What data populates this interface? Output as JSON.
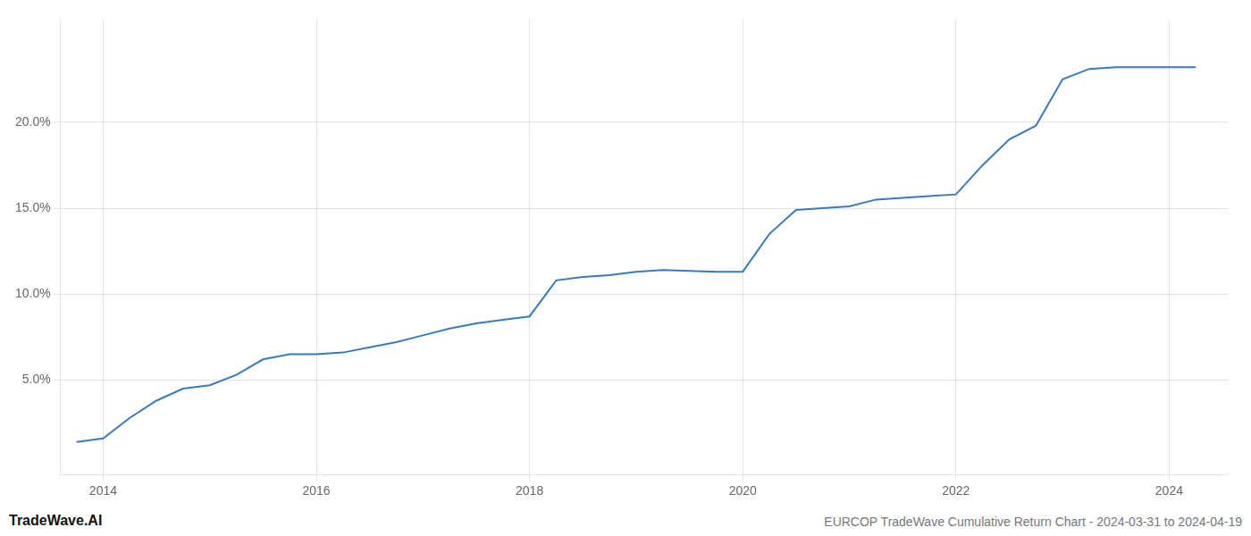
{
  "chart_data": {
    "type": "line",
    "title": "EURCOP TradeWave Cumulative Return Chart - 2024-03-31 to 2024-04-19",
    "annotations": [
      "TradeWave.AI"
    ],
    "x": [
      2013.75,
      2014.0,
      2014.25,
      2014.5,
      2014.75,
      2015.0,
      2015.25,
      2015.5,
      2015.75,
      2016.0,
      2016.25,
      2016.5,
      2016.75,
      2017.0,
      2017.25,
      2017.5,
      2017.75,
      2018.0,
      2018.25,
      2018.5,
      2018.75,
      2019.0,
      2019.25,
      2019.5,
      2019.75,
      2020.0,
      2020.25,
      2020.5,
      2020.75,
      2021.0,
      2021.25,
      2021.5,
      2021.75,
      2022.0,
      2022.25,
      2022.5,
      2022.75,
      2023.0,
      2023.25,
      2023.5,
      2023.75,
      2024.0,
      2024.25
    ],
    "values": [
      1.4,
      1.6,
      2.8,
      3.8,
      4.5,
      4.7,
      5.3,
      6.2,
      6.5,
      6.5,
      6.6,
      6.9,
      7.2,
      7.6,
      8.0,
      8.3,
      8.5,
      8.7,
      10.8,
      11.0,
      11.1,
      11.3,
      11.4,
      11.35,
      11.3,
      11.3,
      13.5,
      14.9,
      15.0,
      15.1,
      15.5,
      15.6,
      15.7,
      15.8,
      17.5,
      19.0,
      19.8,
      22.5,
      23.1,
      23.2,
      23.2,
      23.2,
      23.2
    ],
    "color": "#3a7abf",
    "xlim": [
      2013.6,
      2024.55
    ],
    "ylim": [
      -0.5,
      26.0
    ],
    "xticks": [
      2014,
      2016,
      2018,
      2020,
      2022,
      2024
    ],
    "yticks": [
      {
        "value": 5.0,
        "label": "5.0%"
      },
      {
        "value": 10.0,
        "label": "10.0%"
      },
      {
        "value": 15.0,
        "label": "15.0%"
      },
      {
        "value": 20.0,
        "label": "20.0%"
      }
    ],
    "grid": true
  }
}
